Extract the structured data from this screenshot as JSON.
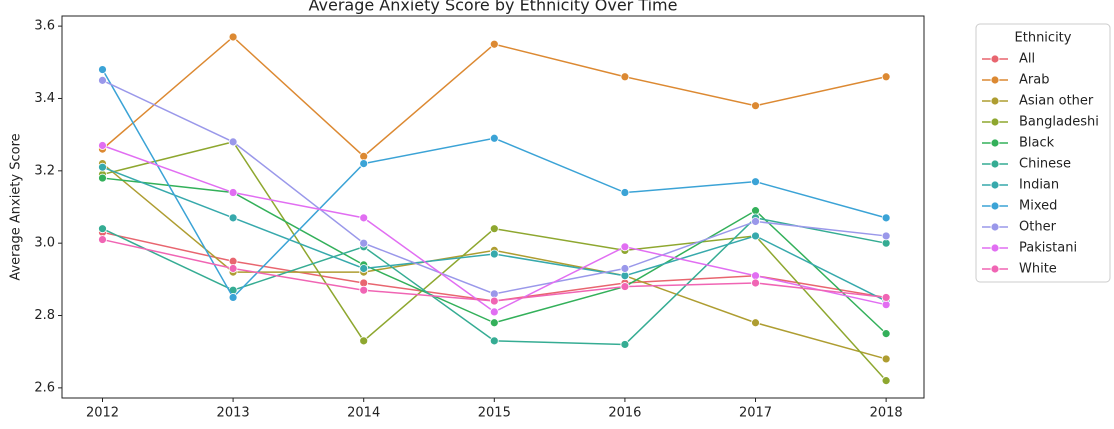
{
  "chart_data": {
    "type": "line",
    "title": "Average Anxiety Score by Ethnicity Over Time",
    "y_label": "Average Anxiety Score",
    "legend_title": "Ethnicity",
    "legend": "outside-upper-right",
    "x": [
      2012,
      2013,
      2014,
      2015,
      2016,
      2017,
      2018
    ],
    "xlim": [
      2011.69,
      2018.29
    ],
    "xticks": [
      2012,
      2013,
      2014,
      2015,
      2016,
      2017,
      2018
    ],
    "ylim": [
      2.572,
      3.628
    ],
    "yticks": [
      {
        "value": 2.6,
        "label": "2.6"
      },
      {
        "value": 2.8,
        "label": "2.8"
      },
      {
        "value": 3.0,
        "label": "3.0"
      },
      {
        "value": 3.2,
        "label": "3.2"
      },
      {
        "value": 3.4,
        "label": "3.4"
      },
      {
        "value": 3.6,
        "label": "3.6"
      }
    ],
    "series": [
      {
        "name": "All",
        "color": "#e8656f",
        "values": [
          3.03,
          2.95,
          2.89,
          2.84,
          2.89,
          2.91,
          2.85
        ]
      },
      {
        "name": "Arab",
        "color": "#dc8932",
        "values": [
          3.26,
          3.57,
          3.24,
          3.55,
          3.46,
          3.38,
          3.46
        ]
      },
      {
        "name": "Asian other",
        "color": "#ae9d31",
        "values": [
          3.22,
          2.92,
          2.92,
          2.98,
          2.91,
          2.78,
          2.68
        ]
      },
      {
        "name": "Bangladeshi",
        "color": "#8ea72f",
        "values": [
          3.19,
          3.28,
          2.73,
          3.04,
          2.98,
          3.02,
          2.62
        ]
      },
      {
        "name": "Black",
        "color": "#33b05a",
        "values": [
          3.18,
          3.14,
          2.94,
          2.78,
          2.88,
          3.09,
          2.75
        ]
      },
      {
        "name": "Chinese",
        "color": "#35ac93",
        "values": [
          3.04,
          2.87,
          2.99,
          2.73,
          2.72,
          3.07,
          3.0
        ]
      },
      {
        "name": "Indian",
        "color": "#37a9ac",
        "values": [
          3.21,
          3.07,
          2.93,
          2.97,
          2.91,
          3.02,
          2.84
        ]
      },
      {
        "name": "Mixed",
        "color": "#3ba3d6",
        "values": [
          3.48,
          2.85,
          3.22,
          3.29,
          3.14,
          3.17,
          3.07
        ]
      },
      {
        "name": "Other",
        "color": "#9a98ea",
        "values": [
          3.45,
          3.28,
          3.0,
          2.86,
          2.93,
          3.06,
          3.02
        ]
      },
      {
        "name": "Pakistani",
        "color": "#e16ef2",
        "values": [
          3.27,
          3.14,
          3.07,
          2.81,
          2.99,
          2.91,
          2.83
        ]
      },
      {
        "name": "White",
        "color": "#f065b4",
        "values": [
          3.01,
          2.93,
          2.87,
          2.84,
          2.88,
          2.89,
          2.85
        ]
      }
    ]
  }
}
